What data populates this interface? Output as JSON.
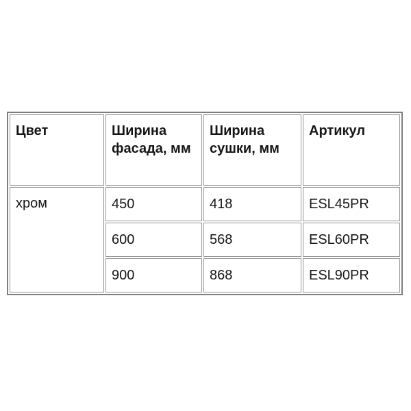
{
  "page": {
    "background_color": "#ffffff"
  },
  "spec_table": {
    "border_color": "#8a8a8a",
    "text_color": "#161616",
    "headers": {
      "color": "Цвет",
      "facade_width": "Ширина фасада, мм",
      "drying_width": "Ширина сушки, мм",
      "article": "Артикул"
    },
    "color_value": "хром",
    "rows": [
      {
        "facade_width_mm": "450",
        "drying_width_mm": "418",
        "article": "ESL45PR"
      },
      {
        "facade_width_mm": "600",
        "drying_width_mm": "568",
        "article": "ESL60PR"
      },
      {
        "facade_width_mm": "900",
        "drying_width_mm": "868",
        "article": "ESL90PR"
      }
    ]
  }
}
